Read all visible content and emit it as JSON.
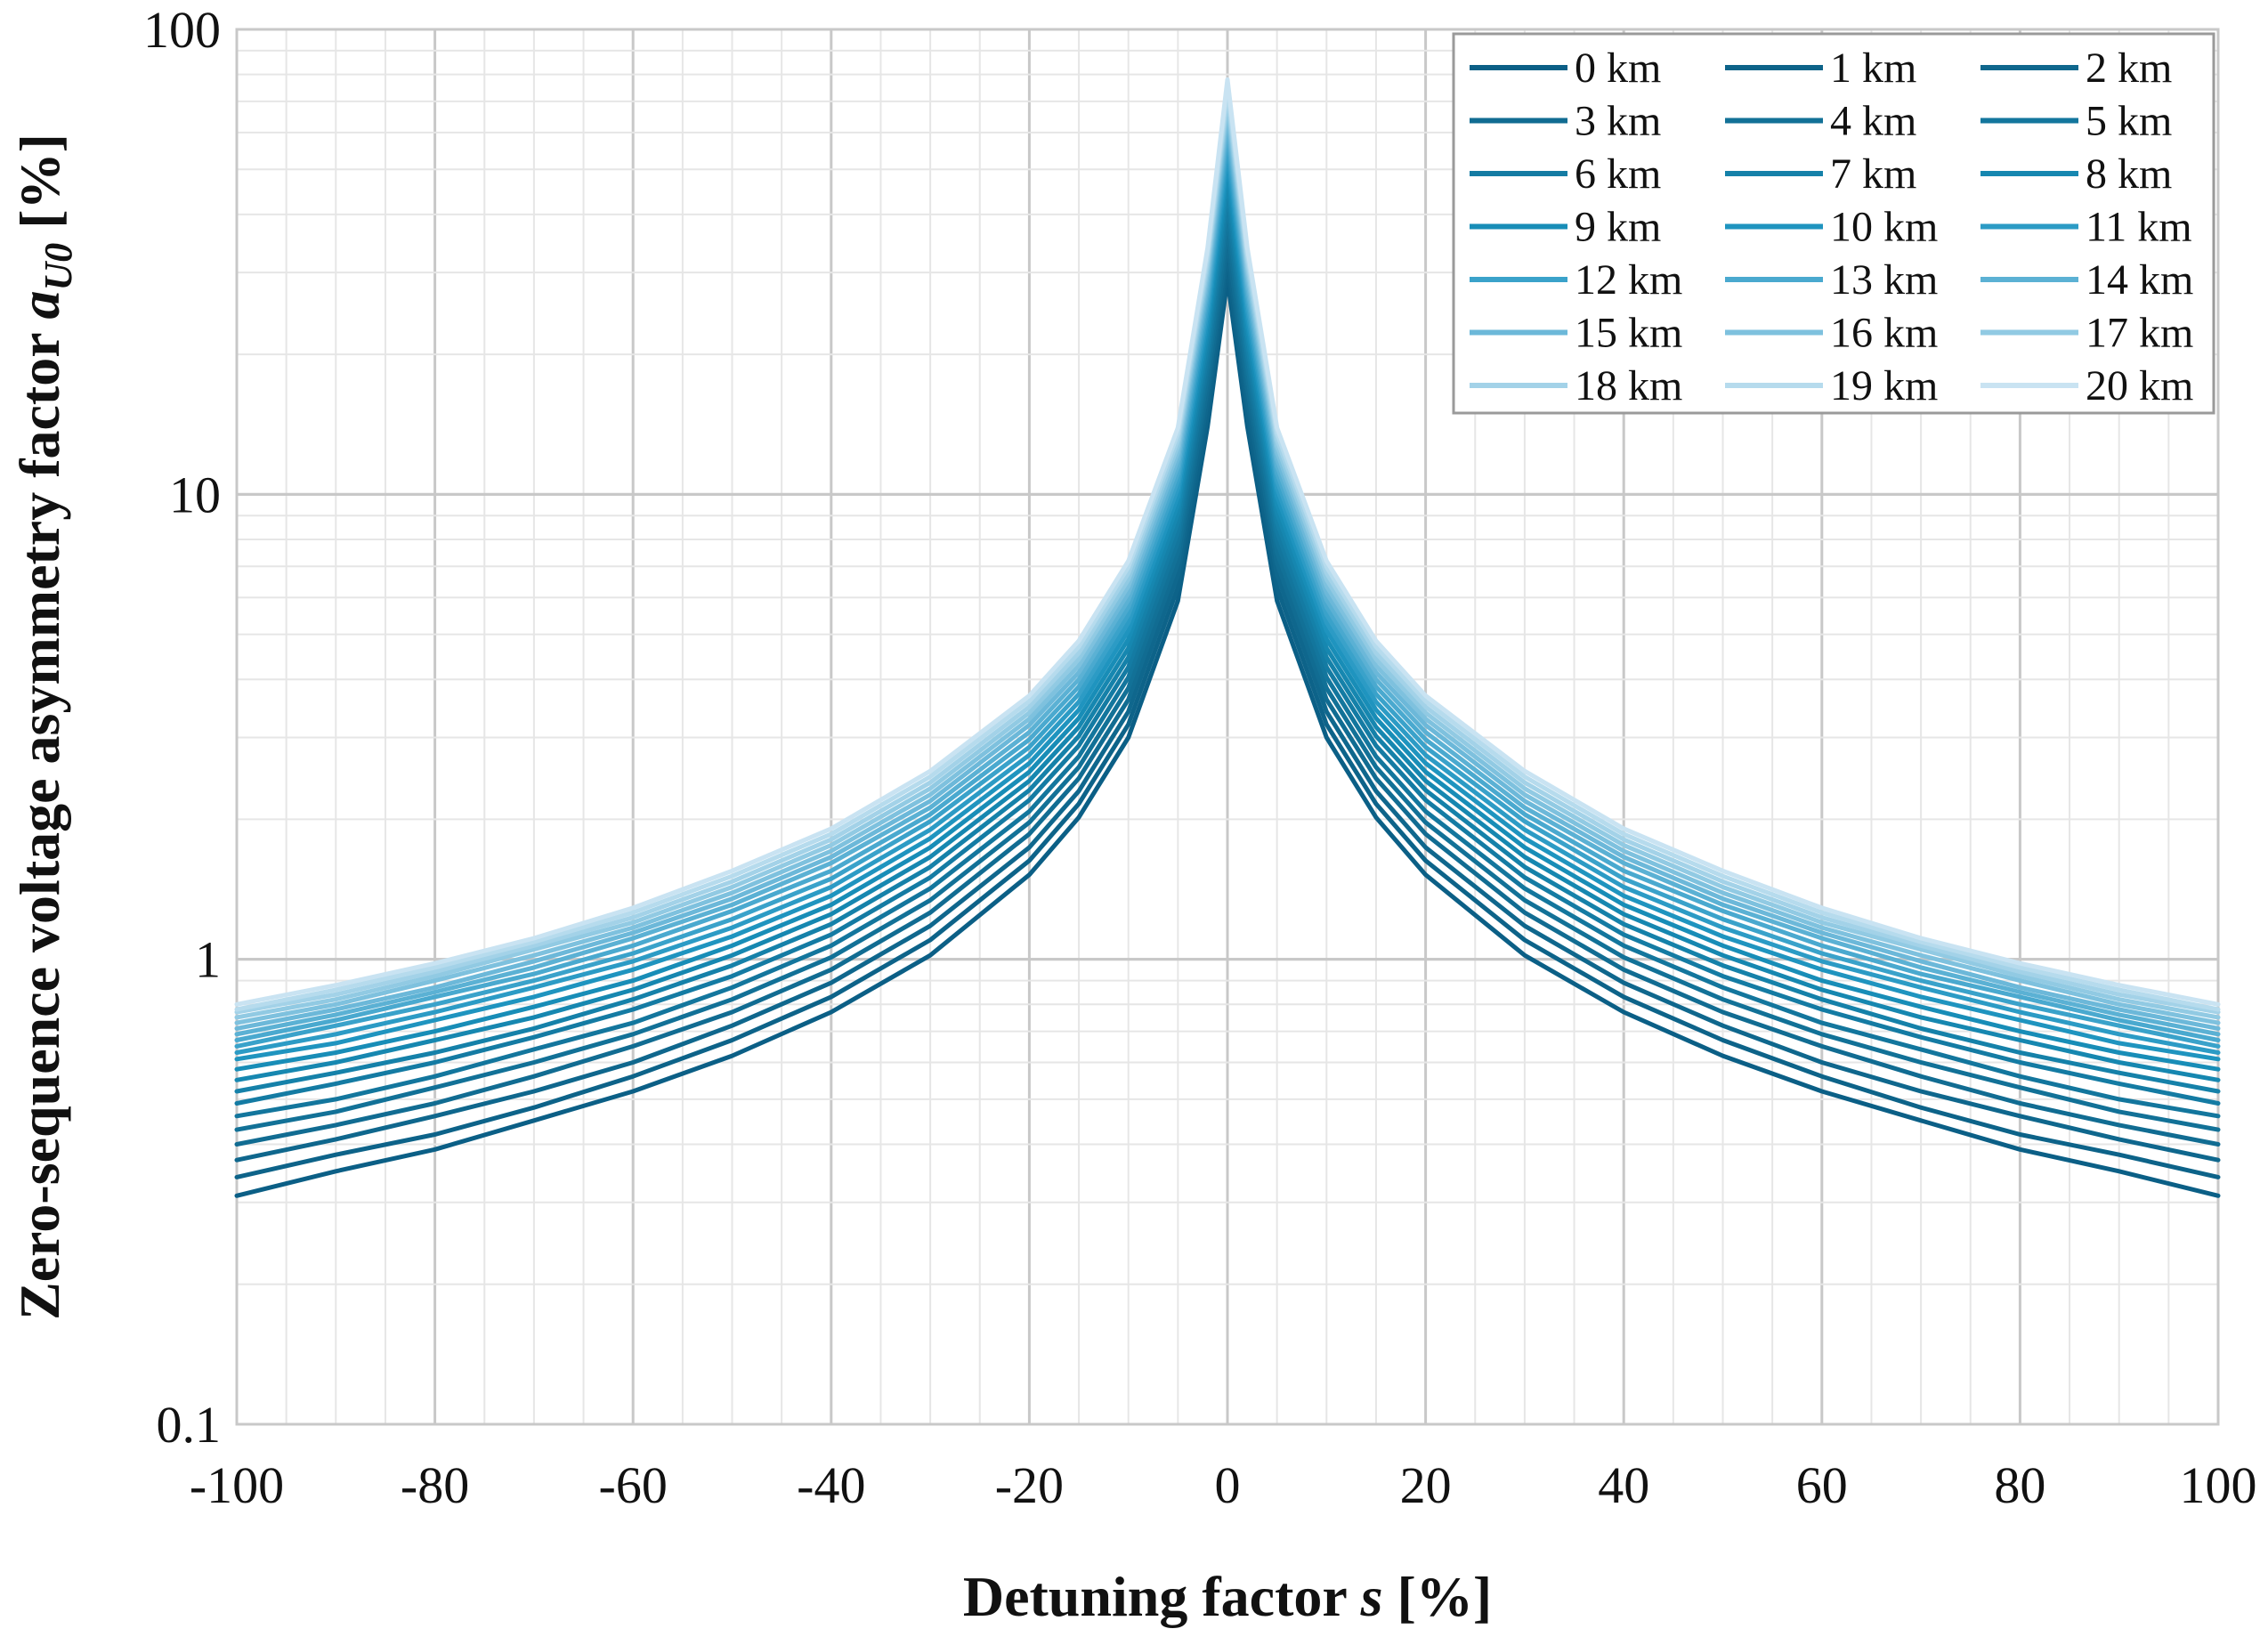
{
  "chart_data": {
    "type": "line",
    "title": "",
    "xlabel": "Detuning factor s [%]",
    "xlabel_parts": [
      "Detuning factor ",
      "s",
      " [%]"
    ],
    "ylabel": "Zero-sequence voltage asymmetry factor aU0 [%]",
    "ylabel_parts": [
      "Zero-sequence voltage asymmetry factor ",
      "a",
      "U0",
      " [%]"
    ],
    "xlim": [
      -100,
      100
    ],
    "ylim": [
      0.1,
      100
    ],
    "yscale": "log",
    "x_ticks": [
      "-100",
      "-80",
      "-60",
      "-40",
      "-20",
      "0",
      "20",
      "40",
      "60",
      "80",
      "100"
    ],
    "y_ticks": [
      "0.1",
      "1",
      "10",
      "100"
    ],
    "grid": true,
    "legend_position": "top-right",
    "legend_columns": 3,
    "x": [
      -100,
      -90,
      -80,
      -70,
      -60,
      -50,
      -40,
      -30,
      -20,
      -15,
      -10,
      -5,
      -2,
      0,
      2,
      5,
      10,
      15,
      20,
      30,
      40,
      50,
      60,
      70,
      80,
      90,
      100
    ],
    "series": [
      {
        "name": "0 km",
        "color": "#0b5f86",
        "values": [
          0.31,
          0.35,
          0.39,
          0.45,
          0.52,
          0.62,
          0.77,
          1.02,
          1.52,
          2.02,
          3.0,
          5.9,
          14.0,
          29.0,
          14.0,
          5.9,
          3.0,
          2.02,
          1.52,
          1.02,
          0.77,
          0.62,
          0.52,
          0.45,
          0.39,
          0.35,
          0.31
        ]
      },
      {
        "name": "1 km",
        "color": "#0d6389",
        "values": [
          0.34,
          0.38,
          0.42,
          0.48,
          0.56,
          0.67,
          0.83,
          1.1,
          1.63,
          2.16,
          3.2,
          6.3,
          14.9,
          31.0,
          14.9,
          6.3,
          3.2,
          2.16,
          1.63,
          1.1,
          0.83,
          0.67,
          0.56,
          0.48,
          0.42,
          0.38,
          0.34
        ]
      },
      {
        "name": "2 km",
        "color": "#0f678d",
        "values": [
          0.37,
          0.41,
          0.46,
          0.52,
          0.6,
          0.72,
          0.89,
          1.18,
          1.74,
          2.3,
          3.41,
          6.7,
          15.9,
          33.0,
          15.9,
          6.7,
          3.41,
          2.3,
          1.74,
          1.18,
          0.89,
          0.72,
          0.6,
          0.52,
          0.46,
          0.41,
          0.37
        ]
      },
      {
        "name": "3 km",
        "color": "#116c92",
        "values": [
          0.4,
          0.44,
          0.49,
          0.56,
          0.65,
          0.77,
          0.95,
          1.26,
          1.86,
          2.45,
          3.62,
          7.1,
          16.9,
          35.0,
          16.9,
          7.1,
          3.62,
          2.45,
          1.86,
          1.26,
          0.95,
          0.77,
          0.65,
          0.56,
          0.49,
          0.44,
          0.4
        ]
      },
      {
        "name": "4 km",
        "color": "#127197",
        "values": [
          0.43,
          0.47,
          0.53,
          0.6,
          0.69,
          0.82,
          1.01,
          1.34,
          1.97,
          2.59,
          3.83,
          7.5,
          17.9,
          37.5,
          17.9,
          7.5,
          3.83,
          2.59,
          1.97,
          1.34,
          1.01,
          0.82,
          0.69,
          0.6,
          0.53,
          0.47,
          0.43
        ]
      },
      {
        "name": "5 km",
        "color": "#13769d",
        "values": [
          0.46,
          0.5,
          0.56,
          0.64,
          0.73,
          0.87,
          1.07,
          1.42,
          2.08,
          2.73,
          4.04,
          7.9,
          18.9,
          40.0,
          18.9,
          7.9,
          4.04,
          2.73,
          2.08,
          1.42,
          1.07,
          0.87,
          0.73,
          0.64,
          0.56,
          0.5,
          0.46
        ]
      },
      {
        "name": "6 km",
        "color": "#147ba3",
        "values": [
          0.49,
          0.54,
          0.6,
          0.68,
          0.78,
          0.92,
          1.13,
          1.5,
          2.2,
          2.88,
          4.25,
          8.3,
          19.9,
          42.5,
          19.9,
          8.3,
          4.25,
          2.88,
          2.2,
          1.5,
          1.13,
          0.92,
          0.78,
          0.68,
          0.6,
          0.54,
          0.49
        ]
      },
      {
        "name": "7 km",
        "color": "#1581a9",
        "values": [
          0.52,
          0.57,
          0.63,
          0.71,
          0.82,
          0.97,
          1.19,
          1.58,
          2.31,
          3.02,
          4.46,
          8.7,
          20.9,
          45.0,
          20.9,
          8.7,
          4.46,
          3.02,
          2.31,
          1.58,
          1.19,
          0.97,
          0.82,
          0.71,
          0.63,
          0.57,
          0.52
        ]
      },
      {
        "name": "8 km",
        "color": "#1687b0",
        "values": [
          0.55,
          0.6,
          0.67,
          0.75,
          0.86,
          1.02,
          1.25,
          1.66,
          2.42,
          3.16,
          4.67,
          9.1,
          21.9,
          47.5,
          21.9,
          9.1,
          4.67,
          3.16,
          2.42,
          1.66,
          1.25,
          1.02,
          0.86,
          0.75,
          0.67,
          0.6,
          0.55
        ]
      },
      {
        "name": "9 km",
        "color": "#188db7",
        "values": [
          0.58,
          0.63,
          0.7,
          0.79,
          0.9,
          1.07,
          1.31,
          1.74,
          2.53,
          3.3,
          4.88,
          9.5,
          22.9,
          50.0,
          22.9,
          9.5,
          4.88,
          3.3,
          2.53,
          1.74,
          1.31,
          1.07,
          0.9,
          0.79,
          0.7,
          0.63,
          0.58
        ]
      },
      {
        "name": "10 km",
        "color": "#1f94bf",
        "values": [
          0.61,
          0.66,
          0.74,
          0.83,
          0.95,
          1.12,
          1.37,
          1.82,
          2.64,
          3.44,
          5.09,
          9.9,
          23.9,
          52.5,
          23.9,
          9.9,
          5.09,
          3.44,
          2.64,
          1.82,
          1.37,
          1.12,
          0.95,
          0.83,
          0.74,
          0.66,
          0.61
        ]
      },
      {
        "name": "11 km",
        "color": "#2c9bc5",
        "values": [
          0.63,
          0.69,
          0.77,
          0.87,
          0.99,
          1.17,
          1.43,
          1.9,
          2.75,
          3.58,
          5.3,
          10.3,
          24.9,
          55.0,
          24.9,
          10.3,
          5.3,
          3.58,
          2.75,
          1.9,
          1.43,
          1.17,
          0.99,
          0.87,
          0.77,
          0.69,
          0.63
        ]
      },
      {
        "name": "12 km",
        "color": "#3aa2ca",
        "values": [
          0.65,
          0.72,
          0.8,
          0.9,
          1.03,
          1.22,
          1.49,
          1.98,
          2.86,
          3.72,
          5.51,
          10.7,
          25.9,
          57.5,
          25.9,
          10.7,
          5.51,
          3.72,
          2.86,
          1.98,
          1.49,
          1.22,
          1.03,
          0.9,
          0.8,
          0.72,
          0.65
        ]
      },
      {
        "name": "13 km",
        "color": "#4aa9cf",
        "values": [
          0.67,
          0.74,
          0.83,
          0.93,
          1.07,
          1.27,
          1.55,
          2.05,
          2.97,
          3.86,
          5.72,
          11.1,
          26.9,
          60.0,
          26.9,
          11.1,
          5.72,
          3.86,
          2.97,
          2.05,
          1.55,
          1.27,
          1.07,
          0.93,
          0.83,
          0.74,
          0.67
        ]
      },
      {
        "name": "14 km",
        "color": "#5bb1d4",
        "values": [
          0.69,
          0.76,
          0.85,
          0.96,
          1.11,
          1.31,
          1.61,
          2.12,
          3.08,
          4.0,
          5.93,
          11.5,
          27.9,
          62.5,
          27.9,
          11.5,
          5.93,
          4.0,
          3.08,
          2.12,
          1.61,
          1.31,
          1.11,
          0.96,
          0.85,
          0.76,
          0.69
        ]
      },
      {
        "name": "15 km",
        "color": "#6cb8d9",
        "values": [
          0.71,
          0.78,
          0.87,
          0.99,
          1.14,
          1.35,
          1.66,
          2.19,
          3.19,
          4.14,
          6.14,
          11.9,
          28.9,
          65.0,
          28.9,
          11.9,
          6.14,
          4.14,
          3.19,
          2.19,
          1.66,
          1.35,
          1.14,
          0.99,
          0.87,
          0.78,
          0.71
        ]
      },
      {
        "name": "16 km",
        "color": "#7ec1de",
        "values": [
          0.73,
          0.8,
          0.9,
          1.02,
          1.17,
          1.39,
          1.71,
          2.26,
          3.29,
          4.28,
          6.35,
          12.3,
          29.9,
          67.5,
          29.9,
          12.3,
          6.35,
          4.28,
          3.29,
          2.26,
          1.71,
          1.39,
          1.17,
          1.02,
          0.9,
          0.8,
          0.73
        ]
      },
      {
        "name": "17 km",
        "color": "#91cae3",
        "values": [
          0.75,
          0.82,
          0.92,
          1.05,
          1.2,
          1.43,
          1.76,
          2.33,
          3.39,
          4.42,
          6.56,
          12.7,
          30.9,
          70.0,
          30.9,
          12.7,
          6.56,
          4.42,
          3.39,
          2.33,
          1.76,
          1.43,
          1.2,
          1.05,
          0.92,
          0.82,
          0.75
        ]
      },
      {
        "name": "18 km",
        "color": "#a3d2e8",
        "values": [
          0.77,
          0.84,
          0.94,
          1.07,
          1.23,
          1.47,
          1.81,
          2.4,
          3.49,
          4.56,
          6.77,
          13.1,
          31.9,
          72.5,
          31.9,
          13.1,
          6.77,
          4.56,
          3.49,
          2.4,
          1.81,
          1.47,
          1.23,
          1.07,
          0.94,
          0.84,
          0.77
        ]
      },
      {
        "name": "19 km",
        "color": "#b6dbed",
        "values": [
          0.78,
          0.86,
          0.96,
          1.09,
          1.26,
          1.51,
          1.86,
          2.47,
          3.59,
          4.7,
          6.98,
          13.5,
          32.9,
          75.0,
          32.9,
          13.5,
          6.98,
          4.7,
          3.59,
          2.47,
          1.86,
          1.51,
          1.26,
          1.09,
          0.96,
          0.86,
          0.78
        ]
      },
      {
        "name": "20 km",
        "color": "#c9e3f2",
        "values": [
          0.8,
          0.88,
          0.98,
          1.11,
          1.29,
          1.55,
          1.91,
          2.54,
          3.69,
          4.84,
          7.19,
          13.9,
          33.9,
          78.0,
          33.9,
          13.9,
          7.19,
          4.84,
          3.69,
          2.54,
          1.91,
          1.55,
          1.29,
          1.11,
          0.98,
          0.88,
          0.8
        ]
      }
    ]
  }
}
